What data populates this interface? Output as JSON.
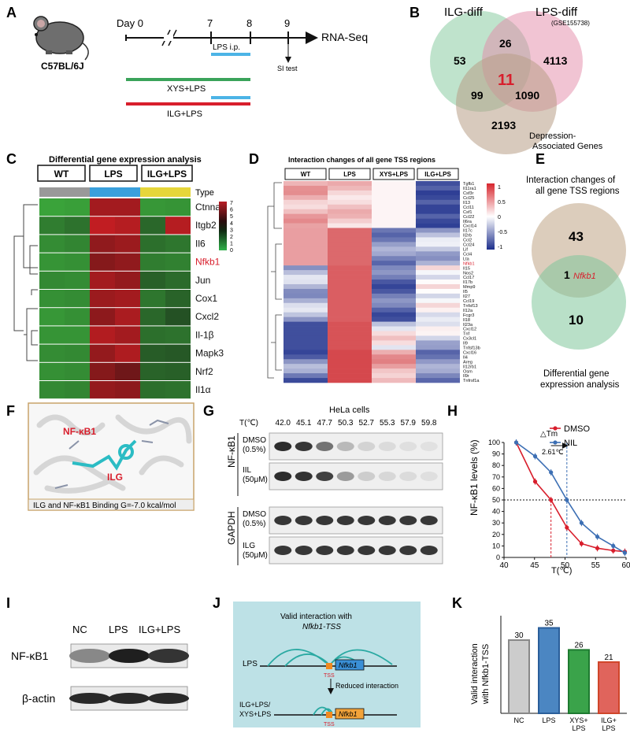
{
  "panel_labels": [
    "A",
    "B",
    "C",
    "D",
    "E",
    "F",
    "G",
    "H",
    "I",
    "J",
    "K"
  ],
  "colors": {
    "red": "#d81e2c",
    "blue": "#3c6fb4",
    "green": "#3aa35a",
    "lightblue": "#4cb4e6",
    "heat_red": "#c42129",
    "heat_green": "#2a9d3a"
  },
  "a": {
    "strain": "C57BL/6J",
    "days": [
      "Day 0",
      "7",
      "8",
      "9"
    ],
    "end_label": "RNA-Seq",
    "lps_ip": "LPS i.p.",
    "si_test": "SI test",
    "groups": [
      "XYS+LPS",
      "ILG+LPS"
    ]
  },
  "b": {
    "set1": "ILG-diff",
    "set2": "LPS-diff",
    "gse": "(GSE155738)",
    "set3": "Depression-\nAssociated Genes",
    "set3_l1": "Depression-",
    "set3_l2": "Associated Genes",
    "counts": {
      "only1": "53",
      "only2": "4113",
      "only3": "2193",
      "s12": "26",
      "s13": "99",
      "s23": "1090",
      "all": "11"
    }
  },
  "c": {
    "title": "Differential gene expression analysis",
    "groups": [
      "WT",
      "LPS",
      "ILG+LPS"
    ],
    "type_label": "Type",
    "genes": [
      "Ctnna1",
      "Itgb2",
      "Il6",
      "Nfkb1",
      "Jun",
      "Cox1",
      "Cxcl2",
      "Il-1β",
      "Mapk3",
      "Nrf2",
      "Il1α"
    ],
    "legend_ticks": [
      "7",
      "6",
      "5",
      "4",
      "3",
      "2",
      "1",
      "0"
    ]
  },
  "d": {
    "title": "Interaction changes of all gene TSS regions",
    "groups": [
      "WT",
      "LPS",
      "XYS+LPS",
      "ILG+LPS"
    ],
    "genes": [
      "Tgfb1",
      "Il11ra1",
      "Csf3r",
      "Ccl25",
      "Il13",
      "Ccl11",
      "Csf1",
      "Ccl22",
      "Il6ra",
      "Cxcl14",
      "Il17c",
      "Il2rb",
      "Ccl2",
      "Ccl24",
      "Lif",
      "Ccl4",
      "Lta",
      "Nfkb1",
      "Il15",
      "Nos2",
      "Ccl17",
      "Il17b",
      "Mmp9",
      "Il5",
      "Il27",
      "Ccl19",
      "Tnfsf13",
      "Il12a",
      "Fcgr3",
      "Il18",
      "Il23a",
      "Cxcl12",
      "Tnf",
      "Cx3cl1",
      "Il9",
      "Tnfsf13b",
      "Cxcl16",
      "Il4",
      "Areg",
      "Il12rb1",
      "Osm",
      "Il9r",
      "Tnfrsf1a"
    ],
    "legend_ticks": [
      "1",
      "0.5",
      "0",
      "-0.5",
      "-1"
    ]
  },
  "e": {
    "top_label_l1": "Interaction changes of",
    "top_label_l2": "all gene TSS regions",
    "top_count": "43",
    "overlap_count": "1",
    "overlap_gene": "Nfkb1",
    "bottom_count": "10",
    "bottom_label_l1": "Differential gene",
    "bottom_label_l2": "expression analysis"
  },
  "f": {
    "protein": "NF-κB1",
    "ligand": "ILG",
    "caption": "ILG and NF-κB1 Binding G=-7.0 kcal/mol"
  },
  "g": {
    "cell": "HeLa cells",
    "t_label": "T(℃)",
    "temps": [
      "42.0",
      "45.1",
      "47.7",
      "50.3",
      "52.7",
      "55.3",
      "57.9",
      "59.8"
    ],
    "target": "NF-κB1",
    "control": "GAPDH",
    "row1": [
      "DMSO",
      "(0.5%)"
    ],
    "row2": [
      "IIL",
      "(50μM)"
    ],
    "row3": [
      "DMSO",
      "(0.5%)"
    ],
    "row4": [
      "ILG",
      "(50μM)"
    ],
    "band_intensity": [
      [
        0.95,
        0.9,
        0.6,
        0.25,
        0.12,
        0.08,
        0.06,
        0.05
      ],
      [
        0.95,
        0.92,
        0.85,
        0.4,
        0.15,
        0.1,
        0.08,
        0.06
      ]
    ]
  },
  "chart_data": {
    "type": "line",
    "title": "",
    "xlabel": "T(℃)",
    "ylabel": "NF-κB1 levels (%)",
    "xlim": [
      40,
      60
    ],
    "ylim": [
      0,
      100
    ],
    "xticks": [
      "40",
      "45",
      "50",
      "55",
      "60"
    ],
    "yticks": [
      "0",
      "10",
      "20",
      "30",
      "40",
      "50",
      "60",
      "70",
      "80",
      "90",
      "100"
    ],
    "x": [
      42.0,
      45.1,
      47.7,
      50.3,
      52.7,
      55.3,
      57.9,
      59.8
    ],
    "series": [
      {
        "name": "DMSO",
        "color": "#d81e2c",
        "values": [
          100,
          66,
          50,
          26,
          12,
          8,
          6,
          5
        ]
      },
      {
        "name": "NIL",
        "color": "#3c6fb4",
        "values": [
          100,
          88,
          74,
          50,
          30,
          18,
          10,
          4
        ]
      }
    ],
    "annotation": "△Tm",
    "annotation_value": "2.61℃",
    "reference_y": 50
  },
  "i": {
    "lanes": [
      "NC",
      "LPS",
      "ILG+LPS"
    ],
    "rows": [
      "NF-κB1",
      "β-actin"
    ]
  },
  "j": {
    "title_l1": "Valid interaction with",
    "title_l2": "Nfkb1-TSS",
    "row1": "LPS",
    "gene": "Nfkb1",
    "tss": "TSS",
    "arrow_label": "Reduced interaction",
    "row2_l1": "ILG+LPS/",
    "row2_l2": "XYS+LPS"
  },
  "k_chart": {
    "type": "bar",
    "ylabel_l1": "Valid interaction",
    "ylabel_l2": "with Nfkb1-TSS",
    "categories": [
      "NC",
      "LPS",
      "XYS+ LPS",
      "ILG+ LPS"
    ],
    "cat_l1": [
      "NC",
      "LPS",
      "XYS+",
      "ILG+"
    ],
    "cat_l2": [
      "",
      "",
      "LPS",
      "LPS"
    ],
    "values": [
      30,
      35,
      26,
      21
    ],
    "labels": [
      "30",
      "35",
      "26",
      "21"
    ],
    "fills": [
      "#cccccc",
      "#4b86c2",
      "#3aa34a",
      "#e0645c"
    ],
    "strokes": [
      "#888888",
      "#2a5e9a",
      "#1e7a30",
      "#d0452a"
    ],
    "ylim": [
      0,
      40
    ]
  }
}
